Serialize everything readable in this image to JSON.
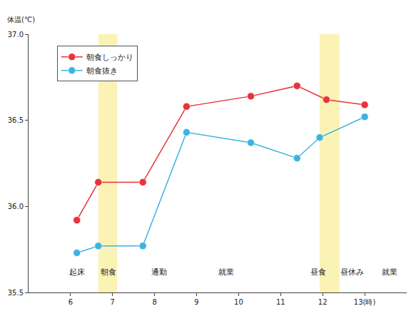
{
  "chart_data": {
    "type": "line",
    "y_label": "体温(℃)",
    "xlim": [
      5,
      14
    ],
    "xticks": [
      6,
      7,
      8,
      9,
      10,
      11,
      12,
      {
        "value": 13,
        "label": "13(時)"
      }
    ],
    "ylim": [
      35.5,
      37.0
    ],
    "yticks": [
      35.5,
      {
        "value": 36,
        "label": "36.0"
      },
      36.5,
      {
        "value": 37,
        "label": "37.0"
      }
    ],
    "grid": false,
    "legend": "upper left",
    "marker": "circle",
    "series": [
      {
        "name": "朝食しっかり",
        "color": "#e8333a",
        "x": [
          6.15,
          6.66,
          7.72,
          8.76,
          10.29,
          11.39,
          12.09,
          13.0
        ],
        "values": [
          35.92,
          36.14,
          36.14,
          36.58,
          36.64,
          36.7,
          36.62,
          36.59
        ]
      },
      {
        "name": "朝食抜き",
        "color": "#3cb4e0",
        "x": [
          6.15,
          6.66,
          7.72,
          8.76,
          10.29,
          11.39,
          11.93,
          13.0
        ],
        "values": [
          35.73,
          35.77,
          35.77,
          36.43,
          36.37,
          36.28,
          36.4,
          36.52
        ]
      }
    ],
    "highlight_ranges": [
      [
        6.66,
        7.11
      ],
      [
        11.93,
        12.4
      ]
    ],
    "highlight_color": "#fbf3b5",
    "annotations": [
      {
        "text": "起床",
        "x": 6.15,
        "y": 35.62
      },
      {
        "text": "朝食",
        "x": 6.9,
        "y": 35.62
      },
      {
        "text": "通勤",
        "x": 8.1,
        "y": 35.62
      },
      {
        "text": "就業",
        "x": 9.7,
        "y": 35.62
      },
      {
        "text": "昼食",
        "x": 11.9,
        "y": 35.62
      },
      {
        "text": "昼休み",
        "x": 12.7,
        "y": 35.62
      },
      {
        "text": "就業",
        "x": 13.6,
        "y": 35.62
      }
    ]
  }
}
